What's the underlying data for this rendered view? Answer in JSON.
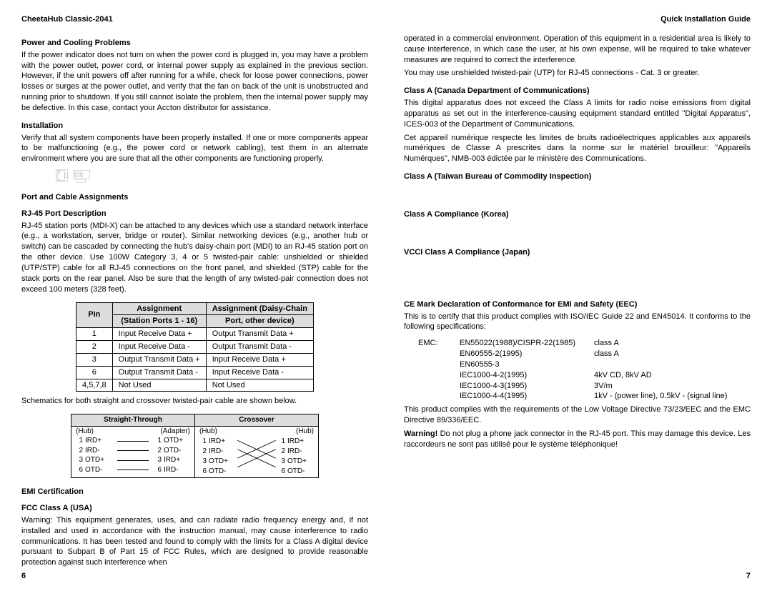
{
  "header": {
    "left": "CheetaHub Classic-2041",
    "right": "Quick Installation Guide"
  },
  "left_col": {
    "s1_title": "Power and Cooling Problems",
    "s1_body": "If the power indicator does not turn on when the power cord is plugged in, you may have a problem with the power outlet, power cord, or internal power supply as explained in the previous section.  However, if the unit powers off after running for a while, check for loose power connections, power losses or surges at the power outlet, and verify that the fan on back of the unit is unobstructed and running prior to shutdown.  If you still cannot isolate the problem, then the internal power supply may be defective.  In this case, contact your Accton distributor for assistance.",
    "s2_title": "Installation",
    "s2_body": "Verify that all system components have been properly installed.  If one or more components appear to be malfunctioning (e.g., the power cord or network cabling), test them in an alternate environment where you are sure that all the other components are functioning properly.",
    "s3_title": "Port and Cable Assignments",
    "s3_sub": "RJ-45 Port Description",
    "s3_body": "RJ-45 station ports (MDI-X) can be attached to any devices which use a standard network interface (e.g., a workstation, server, bridge or router).  Similar networking devices (e.g., another hub or switch) can be cascaded by connecting the hub's daisy-chain port (MDI) to an RJ-45 station port on the other device.  Use 100W Category 3, 4 or 5 twisted-pair cable: unshielded or shielded (UTP/STP) cable for all RJ-45 connections on the front panel, and shielded (STP) cable for the stack ports on the rear panel.  Also be sure that the length of any twisted-pair connection does not exceed 100 meters (328 feet).",
    "pin_table": {
      "h1": "Pin",
      "h2a": "Assignment",
      "h2b": "(Station Ports 1 - 16)",
      "h3a": "Assignment (Daisy-Chain",
      "h3b": "Port, other device)",
      "rows": [
        [
          "1",
          "Input Receive Data +",
          "Output Transmit Data +"
        ],
        [
          "2",
          "Input Receive Data -",
          "Output Transmit Data -"
        ],
        [
          "3",
          "Output Transmit Data +",
          "Input Receive Data +"
        ],
        [
          "6",
          "Output Transmit Data -",
          "Input Receive Data -"
        ],
        [
          "4,5,7,8",
          "Not Used",
          "Not Used"
        ]
      ]
    },
    "schem_caption": "Schematics for both straight and crossover twisted-pair cable are shown below.",
    "cable_table": {
      "h1": "Straight-Through",
      "h2": "Crossover",
      "st_left_label": "(Hub)",
      "st_right_label": "(Adapter)",
      "co_left_label": "(Hub)",
      "co_right_label": "(Hub)",
      "st_rows": [
        [
          "1",
          "IRD+",
          "1",
          "OTD+"
        ],
        [
          "2",
          "IRD-",
          "2",
          "OTD-"
        ],
        [
          "3",
          "OTD+",
          "3",
          "IRD+"
        ],
        [
          "6",
          "OTD-",
          "6",
          "IRD-"
        ]
      ],
      "co_rows": [
        [
          "1",
          "IRD+",
          "1",
          "IRD+"
        ],
        [
          "2",
          "IRD-",
          "2",
          "IRD-"
        ],
        [
          "3",
          "OTD+",
          "3",
          "OTD+"
        ],
        [
          "6",
          "OTD-",
          "6",
          "OTD-"
        ]
      ]
    },
    "s4_title": "EMI Certification",
    "s4_sub": "FCC Class A (USA)",
    "s4_body": "Warning: This equipment generates, uses, and can radiate radio frequency energy and, if not installed and used in accordance with the instruction manual, may cause interference to radio communications.  It has been tested and found to comply with the limits for a Class A digital device pursuant to Subpart B of Part 15 of FCC Rules, which are designed to provide reasonable protection against such interference when",
    "page_num": "6"
  },
  "right_col": {
    "p1": "operated in a commercial environment.  Operation of this equipment in a residential area is likely to cause interference, in which case the user, at his own expense, will be required to take whatever measures are required to correct the interference.",
    "p2": "You may use unshielded twisted-pair (UTP) for RJ-45 connections - Cat. 3 or greater.",
    "s1_title": "Class A (Canada Department of Communications)",
    "s1_body1": "This digital apparatus does not exceed the Class A limits for  radio noise emissions from digital apparatus as set out in the interference-causing equipment standard entitled \"Digital Apparatus\", ICES-003 of the Department of Communications.",
    "s1_body2": "Cet appareil numérique respecte les limites de bruits radioélectriques applicables aux appareils numériques de Classe A prescrites dans la norme sur le matériel brouilleur: \"Appareils Numérques\", NMB-003 édictée par le ministère des Communications.",
    "s2_title": "Class A (Taiwan Bureau of Commodity Inspection)",
    "s3_title": "Class A Compliance (Korea)",
    "s4_title": "VCCI Class A Compliance (Japan)",
    "s5_title": "CE Mark Declaration of Conformance for EMI and Safety (EEC)",
    "s5_body1": "This is to certify that this product complies with ISO/IEC Guide 22 and EN45014.  It conforms to the following specifications:",
    "emc_label": "EMC:",
    "emc_rows": [
      [
        "EN55022(1988)/CISPR-22(1985)",
        "class A"
      ],
      [
        "EN60555-2(1995)",
        "class A"
      ],
      [
        "EN60555-3",
        ""
      ],
      [
        "IEC1000-4-2(1995)",
        "4kV CD, 8kV AD"
      ],
      [
        "IEC1000-4-3(1995)",
        "3V/m"
      ],
      [
        "IEC1000-4-4(1995)",
        "1kV - (power line),  0.5kV - (signal line)"
      ]
    ],
    "s5_body2": "This product complies with the requirements of the Low Voltage Directive 73/23/EEC and the EMC Directive 89/336/EEC.",
    "warning_label": "Warning!",
    "warning_body": "  Do not plug a phone jack connector in the RJ-45 port.  This may damage this device.  Les raccordeurs ne sont pas utilisé pour le système téléphonique!",
    "page_num": "7"
  }
}
